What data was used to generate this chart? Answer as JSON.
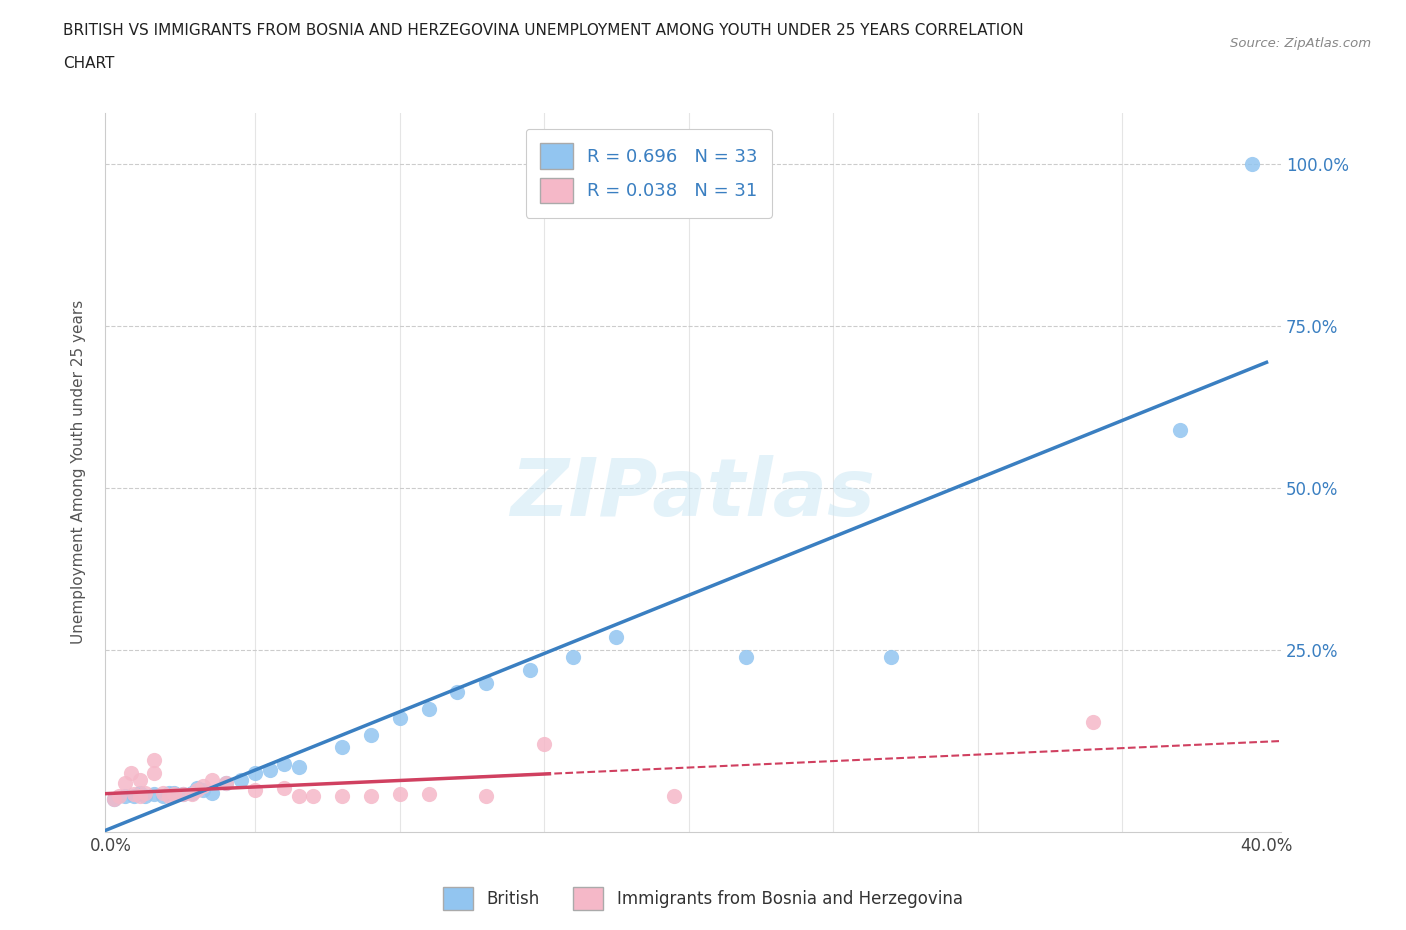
{
  "title_line1": "BRITISH VS IMMIGRANTS FROM BOSNIA AND HERZEGOVINA UNEMPLOYMENT AMONG YOUTH UNDER 25 YEARS CORRELATION",
  "title_line2": "CHART",
  "source_text": "Source: ZipAtlas.com",
  "ylabel": "Unemployment Among Youth under 25 years",
  "watermark": "ZIPatlas",
  "xlim": [
    -0.002,
    0.405
  ],
  "ylim": [
    -0.03,
    1.08
  ],
  "british_R": 0.696,
  "british_N": 33,
  "immigrant_R": 0.038,
  "immigrant_N": 31,
  "british_color": "#92c5f0",
  "immigrant_color": "#f5b8c8",
  "trend_british_color": "#3a7fc1",
  "trend_immigrant_color": "#d04060",
  "background_color": "#ffffff",
  "grid_color": "#cccccc",
  "legend_R_color": "#3a7fc1",
  "british_x": [
    0.001,
    0.005,
    0.008,
    0.01,
    0.012,
    0.015,
    0.018,
    0.02,
    0.022,
    0.025,
    0.028,
    0.03,
    0.032,
    0.035,
    0.04,
    0.045,
    0.05,
    0.055,
    0.06,
    0.065,
    0.08,
    0.09,
    0.1,
    0.11,
    0.12,
    0.13,
    0.145,
    0.16,
    0.175,
    0.22,
    0.27,
    0.37,
    0.395
  ],
  "british_y": [
    0.02,
    0.025,
    0.025,
    0.03,
    0.025,
    0.028,
    0.025,
    0.03,
    0.03,
    0.028,
    0.03,
    0.038,
    0.035,
    0.03,
    0.045,
    0.05,
    0.06,
    0.065,
    0.075,
    0.07,
    0.1,
    0.12,
    0.145,
    0.16,
    0.185,
    0.2,
    0.22,
    0.24,
    0.27,
    0.24,
    0.24,
    0.59,
    1.0
  ],
  "immigrant_x": [
    0.001,
    0.003,
    0.005,
    0.007,
    0.008,
    0.01,
    0.01,
    0.012,
    0.015,
    0.015,
    0.018,
    0.02,
    0.022,
    0.025,
    0.028,
    0.03,
    0.032,
    0.035,
    0.04,
    0.05,
    0.06,
    0.065,
    0.07,
    0.08,
    0.09,
    0.1,
    0.11,
    0.13,
    0.15,
    0.195,
    0.34
  ],
  "immigrant_y": [
    0.02,
    0.025,
    0.045,
    0.06,
    0.028,
    0.025,
    0.05,
    0.03,
    0.06,
    0.08,
    0.03,
    0.025,
    0.028,
    0.028,
    0.028,
    0.035,
    0.04,
    0.05,
    0.045,
    0.035,
    0.038,
    0.025,
    0.025,
    0.025,
    0.025,
    0.028,
    0.028,
    0.025,
    0.105,
    0.025,
    0.14
  ]
}
